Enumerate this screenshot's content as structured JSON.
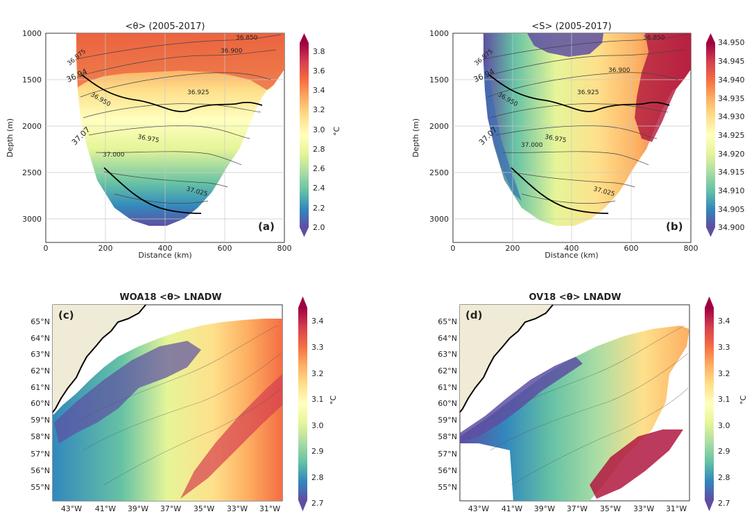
{
  "chart_data": [
    {
      "type": "heatmap",
      "panel": "(a)",
      "title": "<θ> (2005-2017)",
      "xlabel": "Distance (km)",
      "ylabel": "Depth (m)",
      "xlim": [
        0,
        800
      ],
      "ylim": [
        3200,
        1000
      ],
      "xticks": [
        "0",
        "200",
        "400",
        "600",
        "800"
      ],
      "yticks": [
        "1000",
        "1500",
        "2000",
        "2500",
        "3000"
      ],
      "grid": true,
      "colorbar": {
        "label": "°C",
        "min": 2.0,
        "max": 3.8,
        "ticks": [
          "2.0",
          "2.2",
          "2.4",
          "2.6",
          "2.8",
          "3.0",
          "3.2",
          "3.4",
          "3.6",
          "3.8"
        ]
      },
      "contours": [
        "36.850",
        "36.875",
        "36.900",
        "36.925",
        "36.94",
        "36.950",
        "36.975",
        "37.000",
        "37.025",
        "37.07"
      ]
    },
    {
      "type": "heatmap",
      "panel": "(b)",
      "title": "<S> (2005-2017)",
      "xlabel": "Distance (km)",
      "ylabel": "Depth (m)",
      "xlim": [
        0,
        800
      ],
      "ylim": [
        3200,
        1000
      ],
      "xticks": [
        "0",
        "200",
        "400",
        "600",
        "800"
      ],
      "yticks": [
        "1000",
        "1500",
        "2000",
        "2500",
        "3000"
      ],
      "grid": true,
      "colorbar": {
        "label": "",
        "min": 34.9,
        "max": 34.95,
        "ticks": [
          "34.900",
          "34.905",
          "34.910",
          "34.915",
          "34.920",
          "34.925",
          "34.930",
          "34.935",
          "34.940",
          "34.945",
          "34.950"
        ]
      },
      "contours": [
        "36.850",
        "36.875",
        "36.900",
        "36.925",
        "36.94",
        "36.950",
        "36.975",
        "37.000",
        "37.025",
        "37.07"
      ]
    },
    {
      "type": "heatmap",
      "panel": "(c)",
      "title": "WOA18 <θ> LNADW",
      "xticks": [
        "43°W",
        "41°W",
        "39°W",
        "37°W",
        "35°W",
        "33°W",
        "31°W"
      ],
      "yticks": [
        "55°N",
        "56°N",
        "57°N",
        "58°N",
        "59°N",
        "60°N",
        "61°N",
        "62°N",
        "63°N",
        "64°N",
        "65°N"
      ],
      "colorbar": {
        "label": "°C",
        "min": 2.7,
        "max": 3.4,
        "ticks": [
          "2.7",
          "2.8",
          "2.9",
          "3.0",
          "3.1",
          "3.2",
          "3.3",
          "3.4"
        ]
      }
    },
    {
      "type": "heatmap",
      "panel": "(d)",
      "title": "OV18 <θ> LNADW",
      "xticks": [
        "43°W",
        "41°W",
        "39°W",
        "37°W",
        "35°W",
        "33°W",
        "31°W"
      ],
      "yticks": [
        "55°N",
        "56°N",
        "57°N",
        "58°N",
        "59°N",
        "60°N",
        "61°N",
        "62°N",
        "63°N",
        "64°N",
        "65°N"
      ],
      "colorbar": {
        "label": "°C",
        "min": 2.7,
        "max": 3.4,
        "ticks": [
          "2.7",
          "2.8",
          "2.9",
          "3.0",
          "3.1",
          "3.2",
          "3.3",
          "3.4"
        ]
      }
    }
  ],
  "colors": {
    "scale": [
      "#5e4fa2",
      "#3288bd",
      "#66c2a5",
      "#abdda4",
      "#e6f598",
      "#ffffbf",
      "#fee08b",
      "#fdae61",
      "#f46d43",
      "#d53e4f",
      "#9e0142"
    ],
    "land": "#efebd6",
    "grid": "#c8c8c8"
  }
}
